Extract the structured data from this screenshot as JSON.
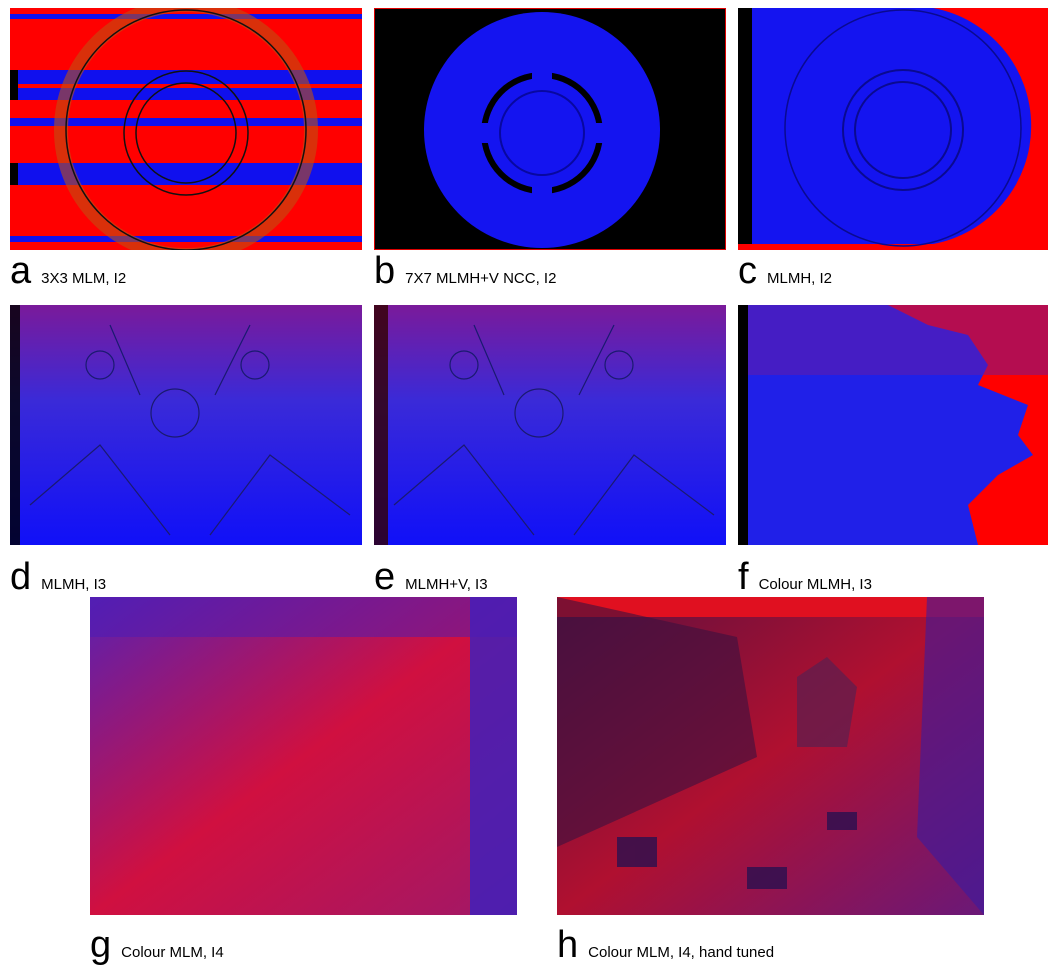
{
  "panels": [
    {
      "letter": "a",
      "caption": "3X3 MLM, I2"
    },
    {
      "letter": "b",
      "caption": "7X7 MLMH+V NCC, I2"
    },
    {
      "letter": "c",
      "caption": "MLMH, I2"
    },
    {
      "letter": "d",
      "caption": "MLMH, I3"
    },
    {
      "letter": "e",
      "caption": "MLMH+V, I3"
    },
    {
      "letter": "f",
      "caption": "Colour MLMH, I3"
    },
    {
      "letter": "g",
      "caption": "Colour MLM, I4"
    },
    {
      "letter": "h",
      "caption": "Colour MLM, I4, hand tuned"
    }
  ]
}
